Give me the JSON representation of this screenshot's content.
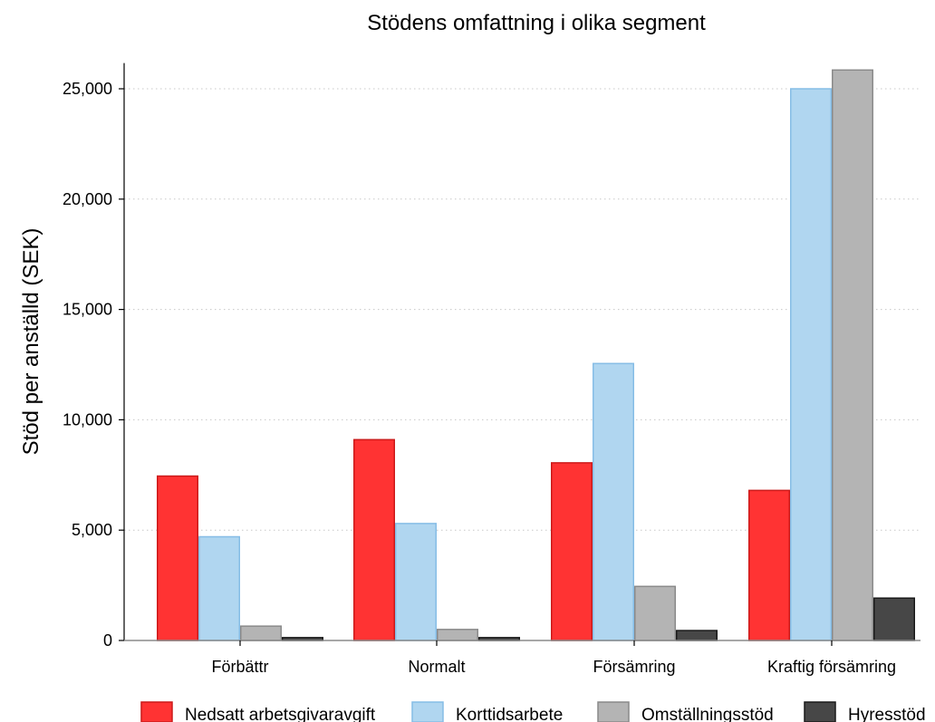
{
  "chart_data": {
    "type": "bar",
    "title": "Stödens omfattning i olika segment",
    "xlabel": "",
    "ylabel": "Stöd per anställd (SEK)",
    "categories": [
      "Förbättr",
      "Normalt",
      "Försämring",
      "Kraftig försämring"
    ],
    "ylim": [
      0,
      26000
    ],
    "yticks": [
      0,
      5000,
      10000,
      15000,
      20000,
      25000
    ],
    "ytick_labels": [
      "0",
      "5,000",
      "10,000",
      "15,000",
      "20,000",
      "25,000"
    ],
    "grid": true,
    "legend_position": "bottom",
    "series": [
      {
        "name": "Nedsatt arbetsgivaravgift",
        "color": "#ff3333",
        "stroke": "#cc1a1a",
        "values": [
          7450,
          9100,
          8050,
          6800
        ]
      },
      {
        "name": "Korttidsarbete",
        "color": "#b0d6f0",
        "stroke": "#86bde6",
        "values": [
          4700,
          5300,
          12550,
          25000
        ]
      },
      {
        "name": "Omställningsstöd",
        "color": "#b4b4b4",
        "stroke": "#8a8a8a",
        "values": [
          650,
          500,
          2450,
          25850
        ]
      },
      {
        "name": "Hyresstöd",
        "color": "#474747",
        "stroke": "#1a1a1a",
        "values": [
          130,
          130,
          450,
          1920
        ]
      }
    ]
  }
}
